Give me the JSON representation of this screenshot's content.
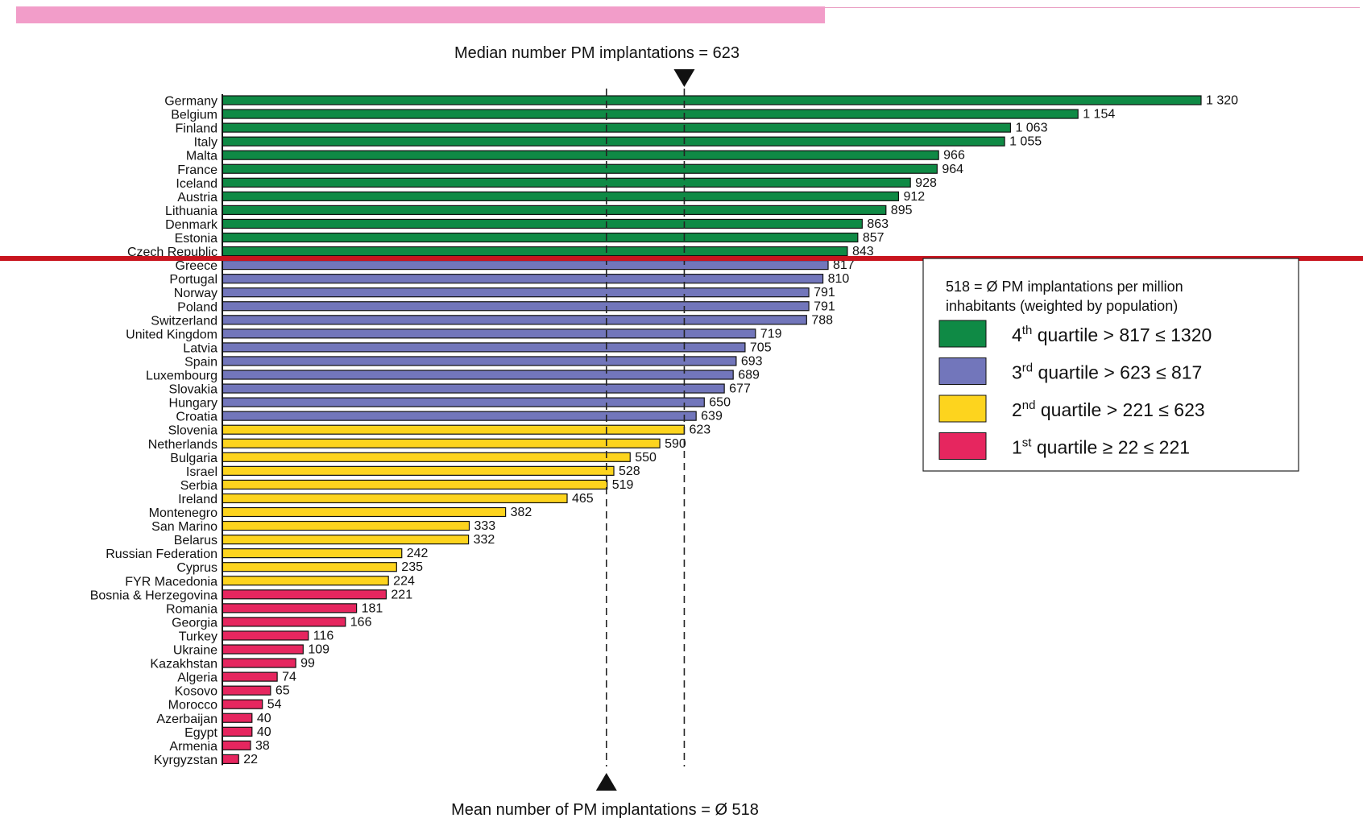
{
  "chart_data": {
    "type": "bar",
    "orientation": "horizontal",
    "categories": [
      "Germany",
      "Belgium",
      "Finland",
      "Italy",
      "Malta",
      "France",
      "Iceland",
      "Austria",
      "Lithuania",
      "Denmark",
      "Estonia",
      "Czech Republic",
      "Greece",
      "Portugal",
      "Norway",
      "Poland",
      "Switzerland",
      "United Kingdom",
      "Latvia",
      "Spain",
      "Luxembourg",
      "Slovakia",
      "Hungary",
      "Croatia",
      "Slovenia",
      "Netherlands",
      "Bulgaria",
      "Israel",
      "Serbia",
      "Ireland",
      "Montenegro",
      "San Marino",
      "Belarus",
      "Russian Federation",
      "Cyprus",
      "FYR Macedonia",
      "Bosnia & Herzegovina",
      "Romania",
      "Georgia",
      "Turkey",
      "Ukraine",
      "Kazakhstan",
      "Algeria",
      "Kosovo",
      "Morocco",
      "Azerbaijan",
      "Egypt",
      "Armenia",
      "Kyrgyzstan"
    ],
    "values": [
      1320,
      1154,
      1063,
      1055,
      966,
      964,
      928,
      912,
      895,
      863,
      857,
      843,
      817,
      810,
      791,
      791,
      788,
      719,
      705,
      693,
      689,
      677,
      650,
      639,
      623,
      590,
      550,
      528,
      519,
      465,
      382,
      333,
      332,
      242,
      235,
      224,
      221,
      181,
      166,
      116,
      109,
      99,
      74,
      65,
      54,
      40,
      40,
      38,
      22
    ],
    "value_labels": [
      "1 320",
      "1 154",
      "1 063",
      "1 055",
      "966",
      "964",
      "928",
      "912",
      "895",
      "863",
      "857",
      "843",
      "817",
      "810",
      "791",
      "791",
      "788",
      "719",
      "705",
      "693",
      "689",
      "677",
      "650",
      "639",
      "623",
      "590",
      "550",
      "528",
      "519",
      "465",
      "382",
      "333",
      "332",
      "242",
      "235",
      "224",
      "221",
      "181",
      "166",
      "116",
      "109",
      "99",
      "74",
      "65",
      "54",
      "40",
      "40",
      "38",
      "22"
    ],
    "quartile": [
      4,
      4,
      4,
      4,
      4,
      4,
      4,
      4,
      4,
      4,
      4,
      4,
      3,
      3,
      3,
      3,
      3,
      3,
      3,
      3,
      3,
      3,
      3,
      3,
      2,
      2,
      2,
      2,
      2,
      2,
      2,
      2,
      2,
      2,
      2,
      2,
      1,
      1,
      1,
      1,
      1,
      1,
      1,
      1,
      1,
      1,
      1,
      1,
      1
    ],
    "colors": {
      "4": "#0f8a45",
      "3": "#7276bb",
      "2": "#fdd41e",
      "1": "#e6265f",
      "highlight_line": "#c8141e"
    },
    "xlim": [
      0,
      1320
    ],
    "grid": false,
    "reference_lines": [
      {
        "name": "median",
        "value": 623,
        "label": "Median number PM implantations = 623"
      },
      {
        "name": "mean",
        "value": 518,
        "label": "Mean number of PM implantations = Ø 518"
      }
    ],
    "legend": {
      "placement": "right",
      "note": "518 = Ø PM implantations per million inhabitants (weighted by population)",
      "entries": [
        {
          "quartile": 4,
          "ord": "4",
          "sup": "th",
          "text": " quartile > 817 ≤ 1320"
        },
        {
          "quartile": 3,
          "ord": "3",
          "sup": "rd",
          "text": " quartile > 623 ≤ 817"
        },
        {
          "quartile": 2,
          "ord": "2",
          "sup": "nd",
          "text": " quartile > 221 ≤ 623"
        },
        {
          "quartile": 1,
          "ord": "1",
          "sup": "st",
          "text": " quartile ≥ 22 ≤ 221"
        }
      ]
    }
  }
}
